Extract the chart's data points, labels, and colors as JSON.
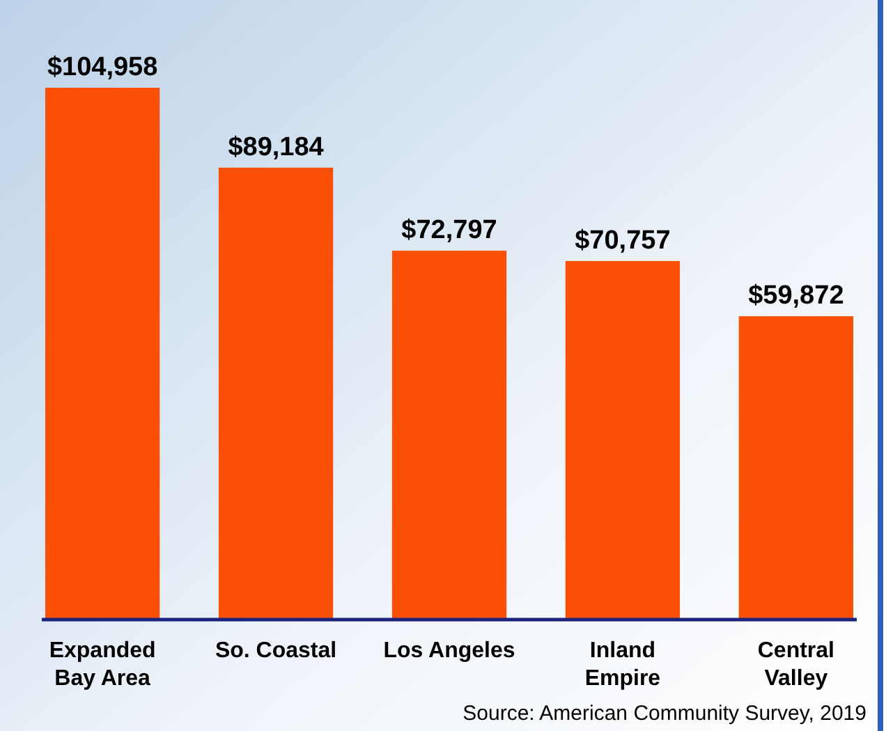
{
  "chart_data": {
    "type": "bar",
    "categories": [
      "Expanded\nBay Area",
      "So. Coastal",
      "Los Angeles",
      "Inland\nEmpire",
      "Central\nValley"
    ],
    "values": [
      104958,
      89184,
      72797,
      70757,
      59872
    ],
    "value_labels": [
      "$104,958",
      "$89,184",
      "$72,797",
      "$70,757",
      "$59,872"
    ],
    "color": "#fa5005",
    "annotations": [
      "Source:  American Community Survey, 2019"
    ]
  }
}
